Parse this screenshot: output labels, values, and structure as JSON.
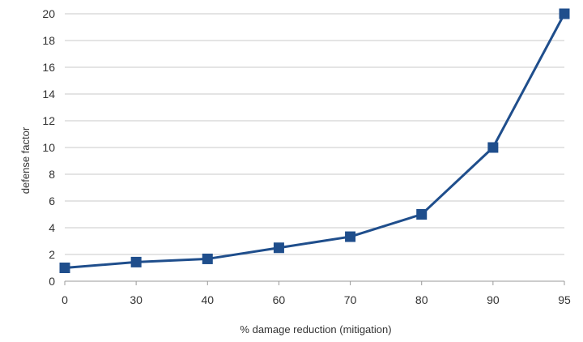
{
  "chart_data": {
    "type": "line",
    "categories": [
      "0",
      "30",
      "40",
      "60",
      "70",
      "80",
      "90",
      "95"
    ],
    "values": [
      1,
      1.43,
      1.67,
      2.5,
      3.33,
      5,
      10,
      20
    ],
    "xlabel": "% damage reduction (mitigation)",
    "ylabel": "defense factor",
    "ylim": [
      0,
      20
    ],
    "yticks": [
      "0",
      "2",
      "4",
      "6",
      "8",
      "10",
      "12",
      "14",
      "16",
      "18",
      "20"
    ],
    "grid": "horizontal",
    "legend": "none",
    "line_color": "#1f4e8c",
    "grid_color": "#c8c8c8"
  }
}
